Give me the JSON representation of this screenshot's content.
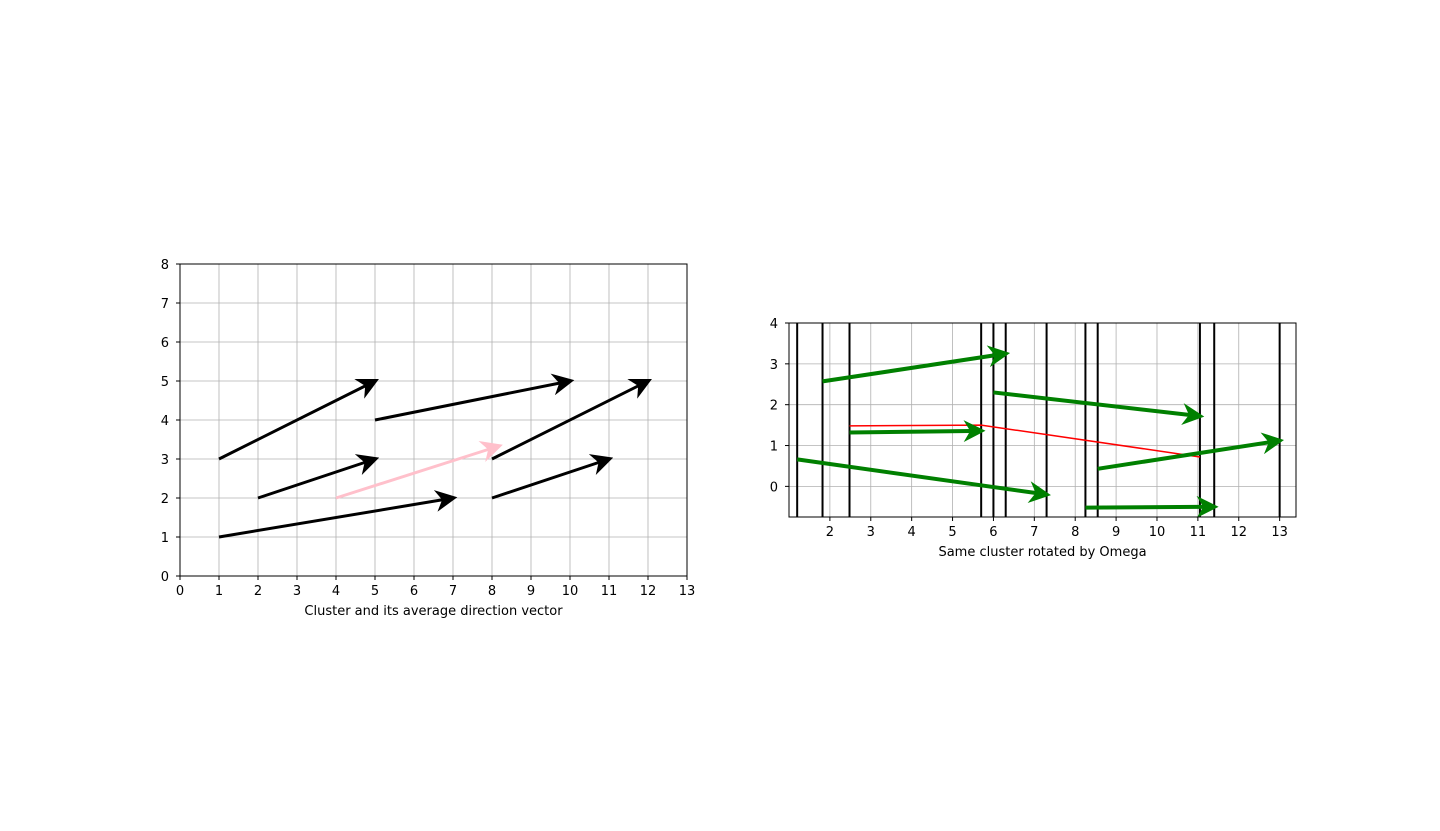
{
  "chart_data": [
    {
      "type": "quiver",
      "xlabel": "Cluster and its average direction vector",
      "xlim": [
        0,
        13
      ],
      "ylim": [
        0,
        8
      ],
      "xticks": [
        0,
        1,
        2,
        3,
        4,
        5,
        6,
        7,
        8,
        9,
        10,
        11,
        12,
        13
      ],
      "yticks": [
        0,
        1,
        2,
        3,
        4,
        5,
        6,
        7,
        8
      ],
      "grid": true,
      "series": [
        {
          "color": "#000000",
          "arrows": [
            {
              "x0": 1,
              "y0": 3,
              "x1": 5,
              "y1": 5
            },
            {
              "x0": 5,
              "y0": 4,
              "x1": 10,
              "y1": 5
            },
            {
              "x0": 8,
              "y0": 3,
              "x1": 12,
              "y1": 5
            },
            {
              "x0": 2,
              "y0": 2,
              "x1": 5,
              "y1": 3
            },
            {
              "x0": 8,
              "y0": 2,
              "x1": 11,
              "y1": 3
            },
            {
              "x0": 1,
              "y0": 1,
              "x1": 7,
              "y1": 2
            }
          ]
        },
        {
          "color": "#ffc0cb",
          "arrows": [
            {
              "x0": 4,
              "y0": 2,
              "x1": 8.17,
              "y1": 3.33
            }
          ]
        }
      ]
    },
    {
      "type": "quiver",
      "xlabel": "Same cluster rotated by Omega",
      "xlim": [
        1,
        13.4
      ],
      "ylim": [
        -0.75,
        4
      ],
      "xticks": [
        2,
        3,
        4,
        5,
        6,
        7,
        8,
        9,
        10,
        11,
        12,
        13
      ],
      "yticks": [
        0,
        1,
        2,
        3,
        4
      ],
      "grid": true,
      "vlines": [
        1.2,
        1.82,
        2.48,
        5.7,
        6.0,
        6.3,
        7.3,
        8.25,
        8.55,
        11.05,
        11.4,
        13.0
      ],
      "vline_color": "#000000",
      "series": [
        {
          "color": "#008000",
          "arrows": [
            {
              "x0": 1.82,
              "y0": 2.57,
              "x1": 6.3,
              "y1": 3.25
            },
            {
              "x0": 6.0,
              "y0": 2.3,
              "x1": 11.05,
              "y1": 1.72
            },
            {
              "x0": 2.48,
              "y0": 1.32,
              "x1": 5.7,
              "y1": 1.36
            },
            {
              "x0": 8.55,
              "y0": 0.43,
              "x1": 13.0,
              "y1": 1.12
            },
            {
              "x0": 1.2,
              "y0": 0.66,
              "x1": 7.3,
              "y1": -0.2
            },
            {
              "x0": 8.25,
              "y0": -0.52,
              "x1": 11.4,
              "y1": -0.5
            }
          ]
        }
      ],
      "line": {
        "color": "#ff0000",
        "x": [
          2.48,
          5.7,
          11.05
        ],
        "y": [
          1.48,
          1.5,
          0.72
        ]
      }
    }
  ]
}
